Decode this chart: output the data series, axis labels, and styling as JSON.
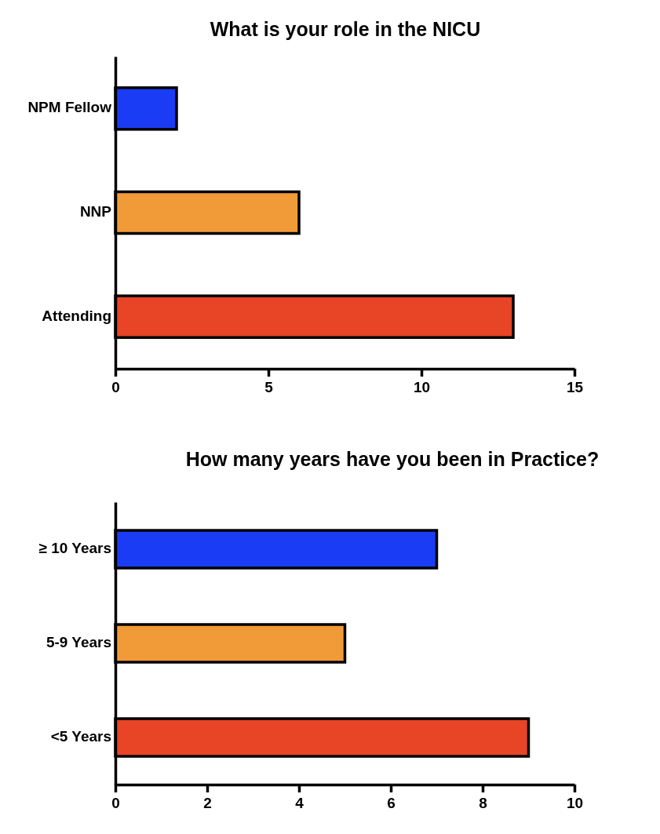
{
  "chart_data": [
    {
      "type": "bar",
      "orientation": "horizontal",
      "title": "What is your role in the NICU",
      "categories": [
        "NPM Fellow",
        "NNP",
        "Attending"
      ],
      "values": [
        2,
        6,
        13
      ],
      "colors": [
        "#1a3cf5",
        "#f09a38",
        "#e84426"
      ],
      "xlim": [
        0,
        15
      ],
      "xticks": [
        0,
        5,
        10,
        15
      ],
      "grid": false
    },
    {
      "type": "bar",
      "orientation": "horizontal",
      "title": "How many years have you been in Practice?",
      "categories": [
        "≥ 10 Years",
        "5-9 Years",
        "<5 Years"
      ],
      "values": [
        7,
        5,
        9
      ],
      "colors": [
        "#1a3cf5",
        "#f09a38",
        "#e84426"
      ],
      "xlim": [
        0,
        10
      ],
      "xticks": [
        0,
        2,
        4,
        6,
        8,
        10
      ],
      "grid": false
    }
  ]
}
